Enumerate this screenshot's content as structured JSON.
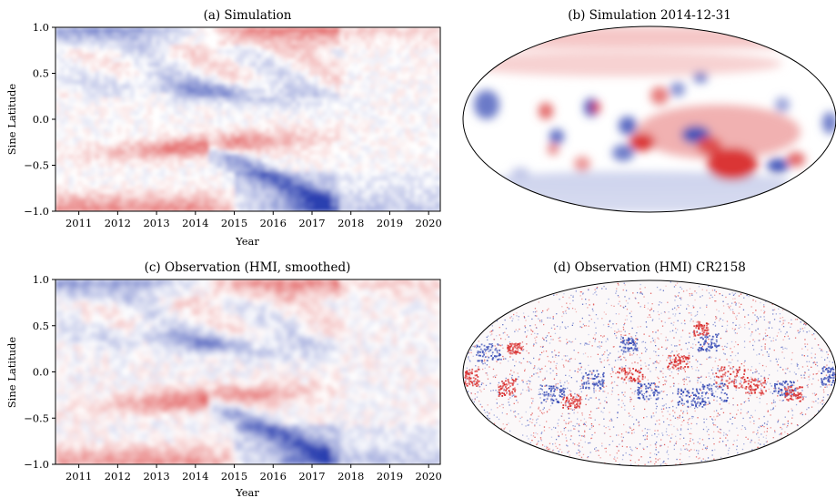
{
  "colors": {
    "positive": "#d62020",
    "negative": "#2a3fb0",
    "neutral": "#ffffff",
    "frame": "#000000"
  },
  "chart_data": [
    {
      "type": "heatmap",
      "title": "(a) Simulation",
      "xlabel": "Year",
      "ylabel": "Sine Latitude",
      "xlim": [
        2010.4,
        2020.3
      ],
      "ylim": [
        -1.0,
        1.0
      ],
      "xticks": [
        2011,
        2012,
        2013,
        2014,
        2015,
        2016,
        2017,
        2018,
        2019,
        2020
      ],
      "xtick_labels": [
        "2011",
        "2012",
        "2013",
        "2014",
        "2015",
        "2016",
        "2017",
        "2018",
        "2019",
        "2020"
      ],
      "yticks": [
        1.0,
        0.5,
        0.0,
        -0.5,
        -1.0
      ],
      "ytick_labels": [
        "1.0",
        "0.5",
        "0.0",
        "−0.5",
        "−1.0"
      ],
      "colormap": "blue-white-red",
      "grid": false
    },
    {
      "type": "heatmap",
      "title": "(b) Simulation 2014-12-31",
      "projection": "mollweide",
      "colormap": "blue-white-red",
      "grid": false
    },
    {
      "type": "heatmap",
      "title": "(c) Observation (HMI, smoothed)",
      "xlabel": "Year",
      "ylabel": "Sine Latitude",
      "xlim": [
        2010.4,
        2020.3
      ],
      "ylim": [
        -1.0,
        1.0
      ],
      "xticks": [
        2011,
        2012,
        2013,
        2014,
        2015,
        2016,
        2017,
        2018,
        2019,
        2020
      ],
      "xtick_labels": [
        "2011",
        "2012",
        "2013",
        "2014",
        "2015",
        "2016",
        "2017",
        "2018",
        "2019",
        "2020"
      ],
      "yticks": [
        1.0,
        0.5,
        0.0,
        -0.5,
        -1.0
      ],
      "ytick_labels": [
        "1.0",
        "0.5",
        "0.0",
        "−0.5",
        "−1.0"
      ],
      "colormap": "blue-white-red",
      "grid": false
    },
    {
      "type": "heatmap",
      "title": "(d) Observation (HMI) CR2158",
      "projection": "mollweide",
      "colormap": "blue-white-red",
      "grid": false
    }
  ]
}
